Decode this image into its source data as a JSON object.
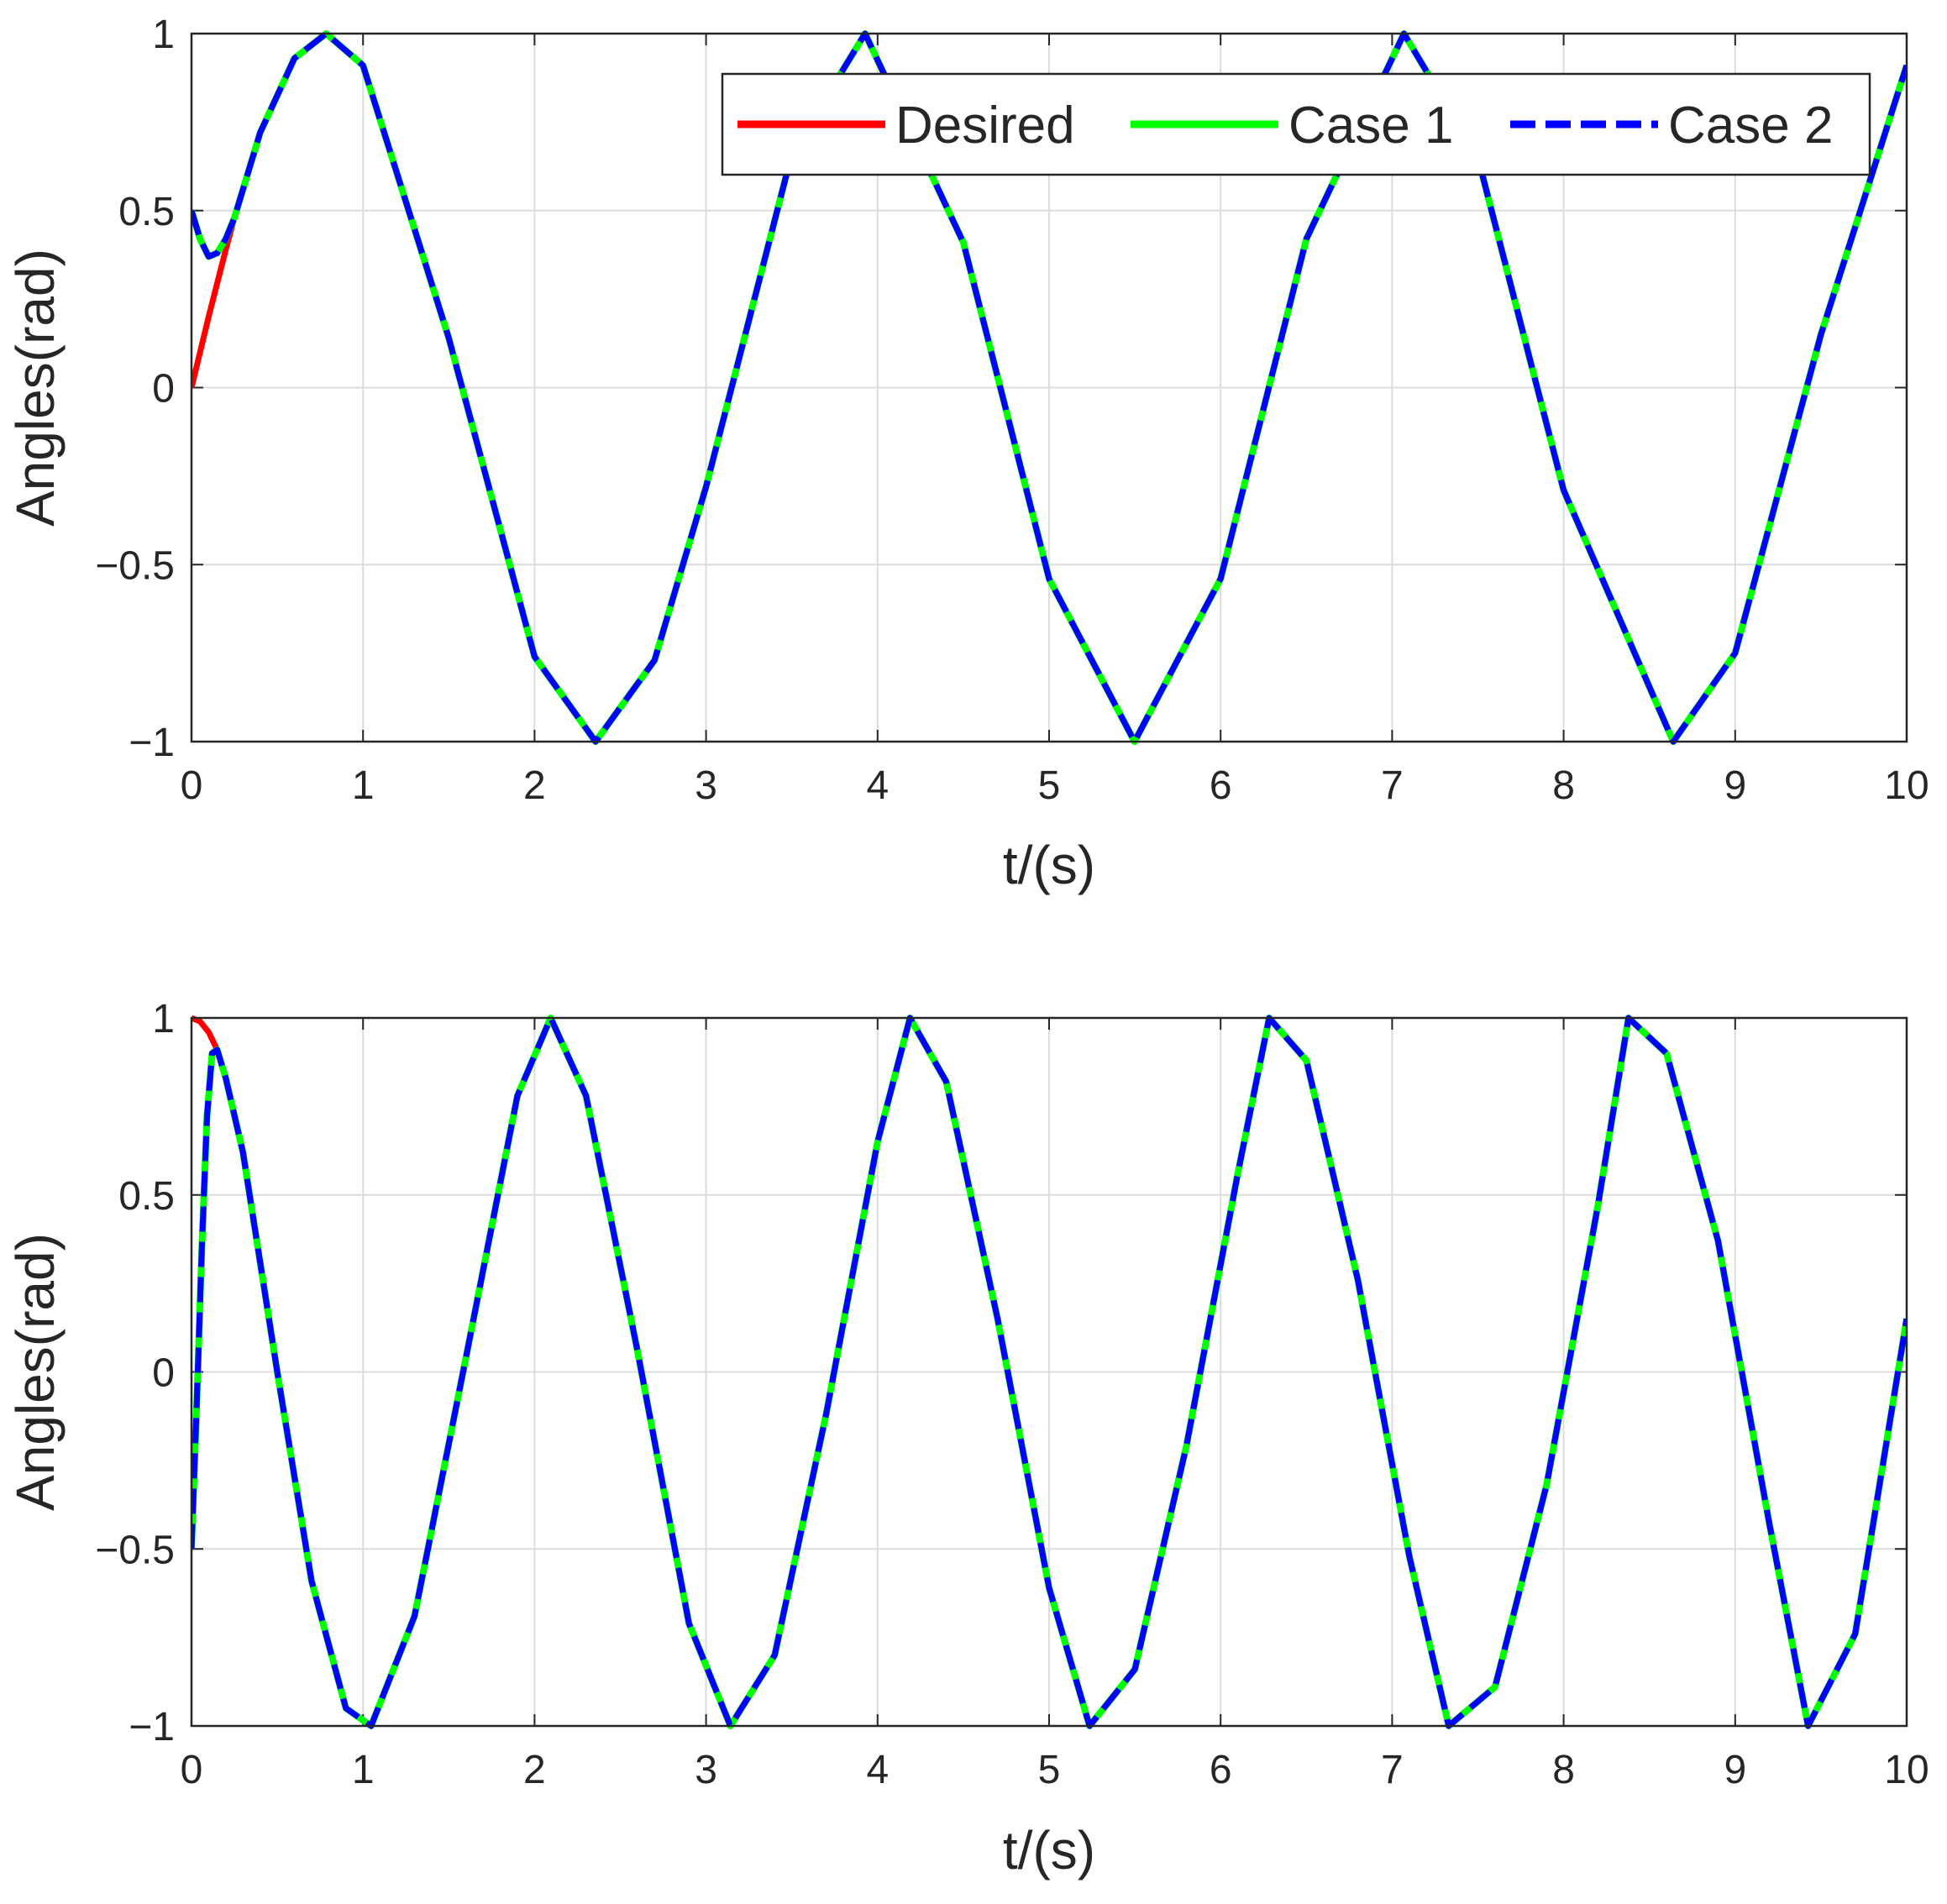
{
  "chart_data": [
    {
      "type": "line",
      "xlabel": "t/(s)",
      "ylabel": "Angles(rad)",
      "xlim": [
        0,
        10
      ],
      "ylim": [
        -1,
        1
      ],
      "x_ticks": [
        "0",
        "1",
        "2",
        "3",
        "4",
        "5",
        "6",
        "7",
        "8",
        "9",
        "10"
      ],
      "y_ticks": [
        "−1",
        "−0.5",
        "0",
        "0.5",
        "1"
      ],
      "grid": true,
      "legend": {
        "placement": "top-right",
        "entries": [
          "Desired",
          "Case 1",
          "Case 2"
        ]
      },
      "series": [
        {
          "name": "Desired",
          "color": "#ff0000",
          "style": "solid",
          "x": [
            0,
            0.1,
            0.2,
            0.25,
            0.4,
            0.6,
            0.785,
            1.0,
            1.5,
            2.0,
            2.356,
            2.7,
            3.0,
            3.5,
            3.927,
            4.5,
            5.0,
            5.498,
            6.0,
            6.5,
            7.069,
            7.5,
            8.0,
            8.639,
            9.0,
            9.5,
            10.0
          ],
          "y": [
            0,
            0.2,
            0.39,
            0.48,
            0.72,
            0.93,
            1.0,
            0.91,
            0.14,
            -0.76,
            -1.0,
            -0.77,
            -0.28,
            0.66,
            1.0,
            0.41,
            -0.54,
            -1.0,
            -0.54,
            0.42,
            1.0,
            0.65,
            -0.29,
            -1.0,
            -0.75,
            0.15,
            0.91
          ]
        },
        {
          "name": "Case 1",
          "color": "#00ff00",
          "style": "solid",
          "x": [
            0,
            0.05,
            0.1,
            0.15,
            0.2,
            0.25,
            0.4,
            0.6,
            0.785,
            1.0,
            1.5,
            2.0,
            2.356,
            2.7,
            3.0,
            3.5,
            3.927,
            4.5,
            5.0,
            5.498,
            6.0,
            6.5,
            7.069,
            7.5,
            8.0,
            8.639,
            9.0,
            9.5,
            10.0
          ],
          "y": [
            0.5,
            0.42,
            0.37,
            0.38,
            0.42,
            0.48,
            0.72,
            0.93,
            1.0,
            0.91,
            0.14,
            -0.76,
            -1.0,
            -0.77,
            -0.28,
            0.66,
            1.0,
            0.41,
            -0.54,
            -1.0,
            -0.54,
            0.42,
            1.0,
            0.65,
            -0.29,
            -1.0,
            -0.75,
            0.15,
            0.91
          ]
        },
        {
          "name": "Case 2",
          "color": "#0000ff",
          "style": "dashed",
          "x": [
            0,
            0.05,
            0.1,
            0.15,
            0.2,
            0.25,
            0.4,
            0.6,
            0.785,
            1.0,
            1.5,
            2.0,
            2.356,
            2.7,
            3.0,
            3.5,
            3.927,
            4.5,
            5.0,
            5.498,
            6.0,
            6.5,
            7.069,
            7.5,
            8.0,
            8.639,
            9.0,
            9.5,
            10.0
          ],
          "y": [
            0.5,
            0.42,
            0.37,
            0.38,
            0.42,
            0.48,
            0.72,
            0.93,
            1.0,
            0.91,
            0.14,
            -0.76,
            -1.0,
            -0.77,
            -0.28,
            0.66,
            1.0,
            0.41,
            -0.54,
            -1.0,
            -0.54,
            0.42,
            1.0,
            0.65,
            -0.29,
            -1.0,
            -0.75,
            0.15,
            0.91
          ]
        }
      ]
    },
    {
      "type": "line",
      "xlabel": "t/(s)",
      "ylabel": "Angles(rad)",
      "xlim": [
        0,
        10
      ],
      "ylim": [
        -1,
        1
      ],
      "x_ticks": [
        "0",
        "1",
        "2",
        "3",
        "4",
        "5",
        "6",
        "7",
        "8",
        "9",
        "10"
      ],
      "y_ticks": [
        "−1",
        "−0.5",
        "0",
        "0.5",
        "1"
      ],
      "grid": true,
      "series": [
        {
          "name": "Desired",
          "color": "#ff0000",
          "style": "solid",
          "x": [
            0,
            0.05,
            0.1,
            0.15,
            0.2,
            0.3,
            0.5,
            0.7,
            0.9,
            1.047,
            1.3,
            1.6,
            1.9,
            2.094,
            2.3,
            2.6,
            2.9,
            3.142,
            3.4,
            3.7,
            4.0,
            4.189,
            4.4,
            4.7,
            5.0,
            5.236,
            5.5,
            5.8,
            6.1,
            6.283,
            6.5,
            6.8,
            7.1,
            7.33,
            7.6,
            7.9,
            8.2,
            8.378,
            8.6,
            8.9,
            9.2,
            9.425,
            9.7,
            10.0
          ],
          "y": [
            1.0,
            0.99,
            0.96,
            0.91,
            0.83,
            0.62,
            0.0,
            -0.59,
            -0.95,
            -1.0,
            -0.69,
            0.04,
            0.78,
            1.0,
            0.78,
            0.06,
            -0.71,
            -1.0,
            -0.8,
            -0.12,
            0.65,
            1.0,
            0.82,
            0.15,
            -0.61,
            -1.0,
            -0.84,
            -0.21,
            0.56,
            1.0,
            0.88,
            0.26,
            -0.52,
            -1.0,
            -0.89,
            -0.32,
            0.47,
            1.0,
            0.9,
            0.37,
            -0.43,
            -1.0,
            -0.74,
            0.15
          ]
        },
        {
          "name": "Case 1",
          "color": "#00ff00",
          "style": "solid",
          "x": [
            0,
            0.03,
            0.06,
            0.09,
            0.12,
            0.15,
            0.2,
            0.3,
            0.5,
            0.7,
            0.9,
            1.047,
            1.3,
            1.6,
            1.9,
            2.094,
            2.3,
            2.6,
            2.9,
            3.142,
            3.4,
            3.7,
            4.0,
            4.189,
            4.4,
            4.7,
            5.0,
            5.236,
            5.5,
            5.8,
            6.1,
            6.283,
            6.5,
            6.8,
            7.1,
            7.33,
            7.6,
            7.9,
            8.2,
            8.378,
            8.6,
            8.9,
            9.2,
            9.425,
            9.7,
            10.0
          ],
          "y": [
            -0.5,
            -0.1,
            0.35,
            0.72,
            0.9,
            0.91,
            0.83,
            0.62,
            0.0,
            -0.59,
            -0.95,
            -1.0,
            -0.69,
            0.04,
            0.78,
            1.0,
            0.78,
            0.06,
            -0.71,
            -1.0,
            -0.8,
            -0.12,
            0.65,
            1.0,
            0.82,
            0.15,
            -0.61,
            -1.0,
            -0.84,
            -0.21,
            0.56,
            1.0,
            0.88,
            0.26,
            -0.52,
            -1.0,
            -0.89,
            -0.32,
            0.47,
            1.0,
            0.9,
            0.37,
            -0.43,
            -1.0,
            -0.74,
            0.15
          ]
        },
        {
          "name": "Case 2",
          "color": "#0000ff",
          "style": "dashed",
          "x": [
            0,
            0.03,
            0.06,
            0.09,
            0.12,
            0.15,
            0.2,
            0.3,
            0.5,
            0.7,
            0.9,
            1.047,
            1.3,
            1.6,
            1.9,
            2.094,
            2.3,
            2.6,
            2.9,
            3.142,
            3.4,
            3.7,
            4.0,
            4.189,
            4.4,
            4.7,
            5.0,
            5.236,
            5.5,
            5.8,
            6.1,
            6.283,
            6.5,
            6.8,
            7.1,
            7.33,
            7.6,
            7.9,
            8.2,
            8.378,
            8.6,
            8.9,
            9.2,
            9.425,
            9.7,
            10.0
          ],
          "y": [
            -0.5,
            -0.1,
            0.35,
            0.72,
            0.9,
            0.91,
            0.83,
            0.62,
            0.0,
            -0.59,
            -0.95,
            -1.0,
            -0.69,
            0.04,
            0.78,
            1.0,
            0.78,
            0.06,
            -0.71,
            -1.0,
            -0.8,
            -0.12,
            0.65,
            1.0,
            0.82,
            0.15,
            -0.61,
            -1.0,
            -0.84,
            -0.21,
            0.56,
            1.0,
            0.88,
            0.26,
            -0.52,
            -1.0,
            -0.89,
            -0.32,
            0.47,
            1.0,
            0.9,
            0.37,
            -0.43,
            -1.0,
            -0.74,
            0.15
          ]
        }
      ]
    }
  ]
}
